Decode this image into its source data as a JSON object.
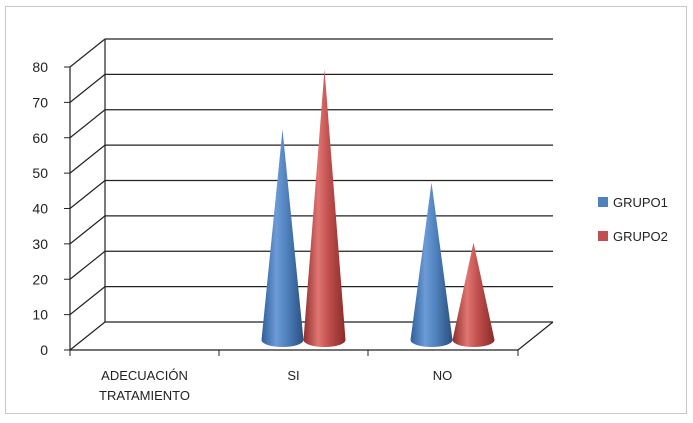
{
  "chart_data": {
    "type": "bar",
    "style": "3d-cone",
    "categories": [
      "ADECUACIÓN TRATAMIENTO",
      "SI",
      "NO"
    ],
    "category_lines": [
      [
        "ADECUACIÓN",
        "TRATAMIENTO"
      ],
      [
        "SI"
      ],
      [
        "NO"
      ]
    ],
    "series": [
      {
        "name": "GRUPO1",
        "color": "#4f81bd",
        "values": [
          0,
          58,
          43
        ]
      },
      {
        "name": "GRUPO2",
        "color": "#c0504d",
        "values": [
          0,
          75,
          26
        ]
      }
    ],
    "yticks": [
      "0",
      "10",
      "20",
      "30",
      "40",
      "50",
      "60",
      "70",
      "80"
    ],
    "ylim": [
      0,
      80
    ],
    "grid": true,
    "legend_position": "right",
    "title": "",
    "xlabel": "",
    "ylabel": ""
  }
}
